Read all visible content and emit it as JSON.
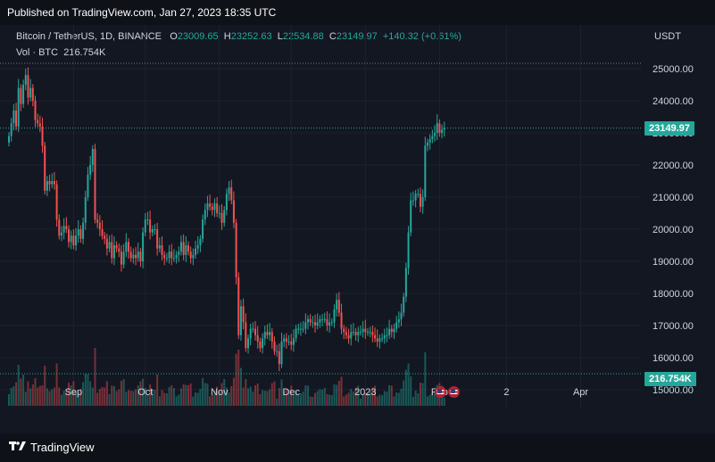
{
  "header": {
    "published": "Published on TradingView.com, Jan 27, 2023 18:35 UTC"
  },
  "legend": {
    "symbol": "Bitcoin / TetherUS, 1D, BINANCE",
    "o_label": "O",
    "o_value": "23009.65",
    "h_label": "H",
    "h_value": "23252.63",
    "l_label": "L",
    "l_value": "22534.88",
    "c_label": "C",
    "c_value": "23149.97",
    "change": "+140.32 (+0.61%)",
    "vol_label": "Vol · BTC",
    "vol_value": "216.754K"
  },
  "axis": {
    "unit": "USDT"
  },
  "tags": {
    "price": "23149.97",
    "volume": "216.754K"
  },
  "footer": {
    "brand": "TradingView"
  },
  "colors": {
    "up": "#26a69a",
    "down": "#ef5350",
    "background": "#131722"
  },
  "icons": {
    "logo": "tradingview-logo-icon",
    "events": "us-flag-icon"
  },
  "chart_data": {
    "type": "candlestick",
    "title": "Bitcoin / TetherUS, 1D, BINANCE",
    "ylabel": "USDT",
    "ylim": [
      14700,
      25300
    ],
    "y_ticks": [
      15000,
      16000,
      17000,
      18000,
      19000,
      20000,
      21000,
      22000,
      23000,
      24000,
      25000
    ],
    "y_tick_labels": [
      "15000.00",
      "16000.00",
      "17000.00",
      "18000.00",
      "19000.00",
      "20000.00",
      "21000.00",
      "22000.00",
      "23000.00",
      "24000.00",
      "25000.00"
    ],
    "x_labels": [
      {
        "label": "Sep",
        "date": "2022-09-01"
      },
      {
        "label": "Oct",
        "date": "2022-10-01"
      },
      {
        "label": "Nov",
        "date": "2022-11-01"
      },
      {
        "label": "Dec",
        "date": "2022-12-01"
      },
      {
        "label": "2023",
        "date": "2023-01-01"
      },
      {
        "label": "Feb",
        "date": "2023-02-01"
      },
      {
        "label": "2",
        "date": "2023-03-01"
      },
      {
        "label": "Apr",
        "date": "2023-04-01"
      }
    ],
    "start_date": "2022-08-05",
    "last_price": 23149.97,
    "last_volume": "216.754K",
    "close": [
      22900,
      23300,
      23700,
      23200,
      24400,
      23900,
      24500,
      24800,
      24100,
      24400,
      24000,
      23400,
      23300,
      23200,
      22600,
      21200,
      21500,
      21400,
      21500,
      21400,
      20300,
      19800,
      19900,
      20100,
      20000,
      19600,
      19800,
      19500,
      19800,
      20000,
      19700,
      20200,
      21000,
      21700,
      22000,
      22500,
      20300,
      20200,
      20000,
      19800,
      19700,
      19400,
      19600,
      19100,
      19500,
      19400,
      19300,
      18900,
      19300,
      19600,
      19300,
      19100,
      19200,
      19100,
      19300,
      19000,
      19900,
      20300,
      20300,
      19900,
      20000,
      20000,
      19400,
      19500,
      19200,
      19100,
      19100,
      19300,
      19100,
      19100,
      19200,
      19300,
      19600,
      19200,
      19500,
      19300,
      19100,
      19200,
      19400,
      19500,
      19700,
      20300,
      20600,
      20800,
      20700,
      20600,
      20800,
      20500,
      20500,
      20200,
      20600,
      21100,
      21300,
      20900,
      20200,
      18500,
      16700,
      17600,
      17100,
      16300,
      16600,
      16900,
      16900,
      16700,
      16500,
      16300,
      16600,
      16800,
      16700,
      16800,
      16500,
      16200,
      16200,
      15800,
      16500,
      16600,
      16500,
      16500,
      16400,
      16600,
      16900,
      16900,
      16900,
      16900,
      17100,
      17200,
      17100,
      17100,
      17000,
      17100,
      17200,
      17200,
      17200,
      17000,
      17100,
      17100,
      17500,
      17800,
      17400,
      16900,
      16800,
      16700,
      16600,
      16800,
      16800,
      16700,
      16800,
      16800,
      16900,
      16800,
      16800,
      16800,
      16700,
      16600,
      16500,
      16600,
      16600,
      16700,
      16700,
      16900,
      16800,
      16900,
      17100,
      17200,
      17400,
      17900,
      18800,
      19900,
      20900,
      20900,
      21100,
      21100,
      20700,
      21000,
      22600,
      22700,
      22800,
      22900,
      23000,
      23300,
      23000,
      23100,
      23149.97
    ]
  }
}
